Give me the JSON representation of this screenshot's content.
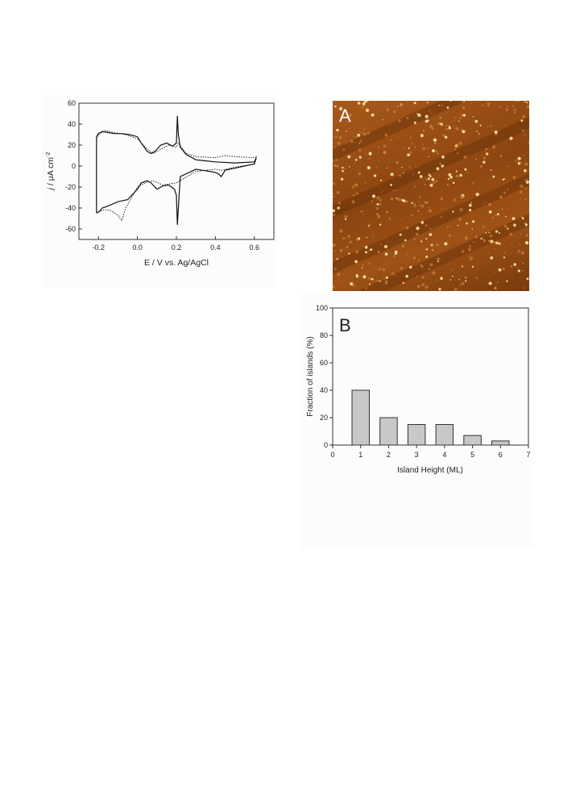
{
  "figure_cv": {
    "x_ticks": [
      "-0.2",
      "0.0",
      "0.2",
      "0.4",
      "0.6"
    ],
    "y_ticks": [
      "60",
      "40",
      "20",
      "0",
      "-20",
      "-40",
      "-60"
    ],
    "xlabel": "E / V vs. Ag/AgCl",
    "ylabel_italic": "j",
    "ylabel_rest": " / μA cm",
    "ylabel_sup": "-2"
  },
  "figure_afm": {
    "panel_label": "A",
    "colors": {
      "base": "#8a4410",
      "bright": "#f7e6a0",
      "dark": "#5a2806"
    }
  },
  "chart_data": [
    {
      "type": "line",
      "title": "",
      "xlabel": "E / V vs. Ag/AgCl",
      "ylabel": "j / μA cm-2",
      "xlim": [
        -0.3,
        0.7
      ],
      "ylim": [
        -70,
        60
      ],
      "grid": false,
      "series": [
        {
          "style": "solid",
          "x": [
            -0.21,
            -0.2,
            -0.18,
            -0.15,
            -0.12,
            -0.08,
            -0.04,
            0.0,
            0.02,
            0.05,
            0.07,
            0.09,
            0.12,
            0.15,
            0.18,
            0.2,
            0.205,
            0.21,
            0.22,
            0.25,
            0.3,
            0.4,
            0.5,
            0.6,
            0.61,
            0.6,
            0.5,
            0.45,
            0.43,
            0.42,
            0.4,
            0.3,
            0.22,
            0.205,
            0.2,
            0.19,
            0.16,
            0.13,
            0.1,
            0.07,
            0.05,
            0.02,
            0.0,
            -0.05,
            -0.1,
            -0.15,
            -0.18,
            -0.2,
            -0.21,
            -0.21
          ],
          "y": [
            28,
            31,
            33,
            32,
            31,
            31,
            30,
            28,
            22,
            14,
            12,
            14,
            20,
            22,
            19,
            22,
            48,
            30,
            18,
            11,
            6,
            4,
            3,
            4,
            8,
            2,
            -2,
            -4,
            -10,
            -8,
            -6,
            -3,
            -10,
            -56,
            -28,
            -22,
            -18,
            -19,
            -22,
            -16,
            -14,
            -16,
            -22,
            -32,
            -34,
            -38,
            -40,
            -44,
            -44,
            28
          ]
        },
        {
          "style": "dotted",
          "x": [
            -0.21,
            -0.2,
            -0.17,
            -0.12,
            -0.06,
            0.0,
            0.04,
            0.08,
            0.12,
            0.16,
            0.2,
            0.21,
            0.25,
            0.3,
            0.4,
            0.45,
            0.5,
            0.6,
            0.61,
            0.6,
            0.5,
            0.43,
            0.4,
            0.3,
            0.2,
            0.13,
            0.08,
            0.04,
            0.0,
            -0.03,
            -0.06,
            -0.08,
            -0.1,
            -0.14,
            -0.18,
            -0.21
          ],
          "y": [
            26,
            30,
            34,
            32,
            30,
            26,
            18,
            12,
            16,
            20,
            18,
            22,
            12,
            9,
            8,
            10,
            9,
            8,
            9,
            2,
            -1,
            -4,
            -3,
            -5,
            -16,
            -18,
            -14,
            -16,
            -20,
            -30,
            -40,
            -52,
            -47,
            -42,
            -42,
            -45
          ]
        }
      ]
    },
    {
      "type": "bar",
      "panel_label": "B",
      "title": "",
      "xlabel": "Island Height (ML)",
      "ylabel": "Fraction of islands (%)",
      "x": [
        1,
        2,
        3,
        4,
        5,
        6
      ],
      "values": [
        40,
        20,
        15,
        15,
        7,
        3
      ],
      "xlim": [
        0,
        7
      ],
      "ylim": [
        0,
        100
      ],
      "x_ticks": [
        "0",
        "1",
        "2",
        "3",
        "4",
        "5",
        "6",
        "7"
      ],
      "y_ticks": [
        "0",
        "20",
        "40",
        "60",
        "80",
        "100"
      ],
      "bar_color": "#c8c8c8",
      "grid": false
    }
  ]
}
